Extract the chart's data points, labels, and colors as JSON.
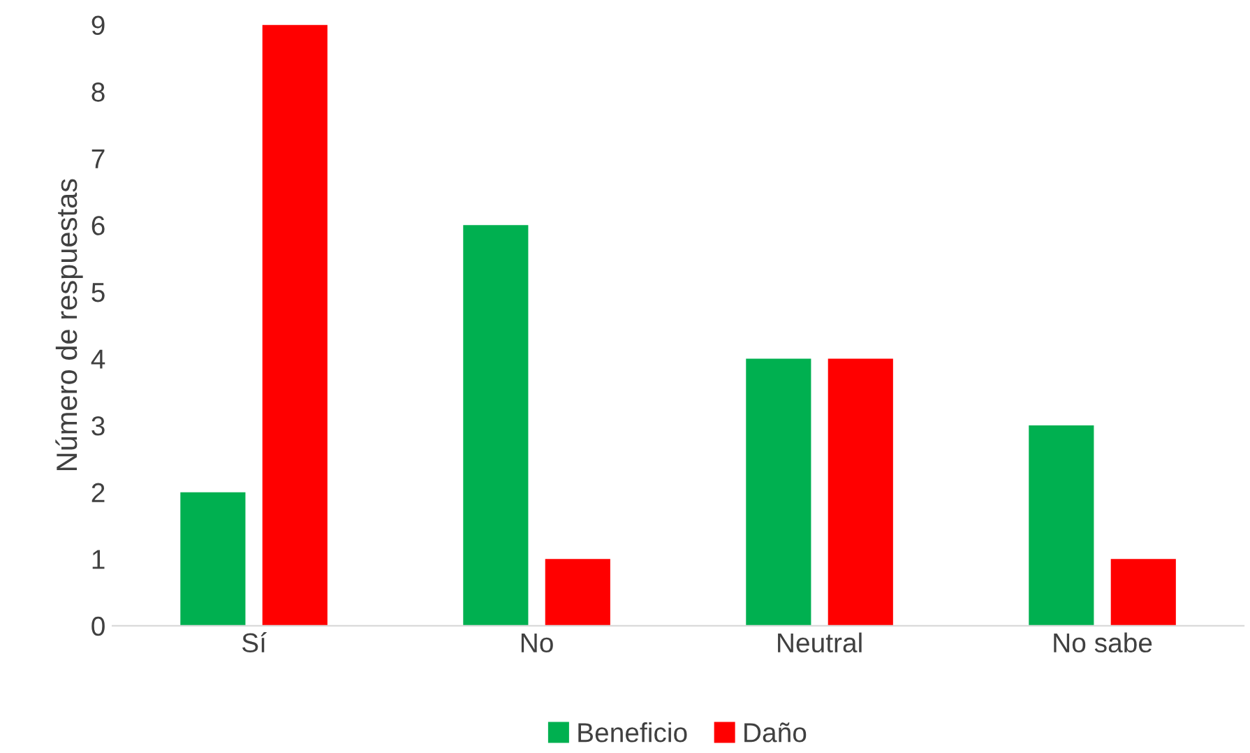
{
  "chart_data": {
    "type": "bar",
    "ylabel": "Número de respuestas",
    "categories": [
      "Sí",
      "No",
      "Neutral",
      "No sabe"
    ],
    "series": [
      {
        "name": "Beneficio",
        "color": "#00b050",
        "values": [
          2,
          6,
          4,
          3
        ]
      },
      {
        "name": "Daño",
        "color": "#ff0000",
        "values": [
          9,
          1,
          4,
          1
        ]
      }
    ],
    "ylim": [
      0,
      9
    ],
    "yticks": [
      0,
      1,
      2,
      3,
      4,
      5,
      6,
      7,
      8,
      9
    ],
    "grid": false,
    "legend": "bottom"
  }
}
